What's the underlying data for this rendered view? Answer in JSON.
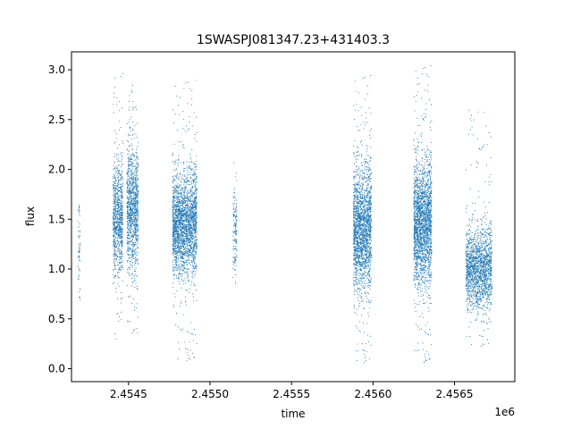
{
  "chart_data": {
    "type": "scatter",
    "title": "1SWASPJ081347.23+431403.3",
    "xlabel": "time",
    "ylabel": "flux",
    "x_offset_label": "1e6",
    "xlim": [
      2454150,
      2456870
    ],
    "ylim": [
      -0.13,
      3.18
    ],
    "x_ticks": [
      2454500,
      2455000,
      2455500,
      2456000,
      2456500
    ],
    "x_tick_labels": [
      "2.4545",
      "2.4550",
      "2.4555",
      "2.4560",
      "2.4565"
    ],
    "y_ticks": [
      0.0,
      0.5,
      1.0,
      1.5,
      2.0,
      2.5,
      3.0
    ],
    "y_tick_labels": [
      "0.0",
      "0.5",
      "1.0",
      "1.5",
      "2.0",
      "2.5",
      "3.0"
    ],
    "grid": false,
    "marker_color": "#1f77b4",
    "clusters": [
      {
        "x": [
          2454190,
          2454205
        ],
        "y_center": 1.25,
        "y_spread": 0.3,
        "y_min": 0.6,
        "y_max": 1.65,
        "count": 60
      },
      {
        "x": [
          2454405,
          2454465
        ],
        "y_center": 1.5,
        "y_spread": 0.28,
        "y_min": 0.25,
        "y_max": 3.0,
        "count": 900
      },
      {
        "x": [
          2454490,
          2454560
        ],
        "y_center": 1.6,
        "y_spread": 0.3,
        "y_min": 0.35,
        "y_max": 2.85,
        "count": 1100
      },
      {
        "x": [
          2454770,
          2454920
        ],
        "y_center": 1.45,
        "y_spread": 0.25,
        "y_min": 0.05,
        "y_max": 2.9,
        "count": 2400
      },
      {
        "x": [
          2455140,
          2455165
        ],
        "y_center": 1.4,
        "y_spread": 0.22,
        "y_min": 0.85,
        "y_max": 2.15,
        "count": 150
      },
      {
        "x": [
          2455880,
          2455990
        ],
        "y_center": 1.4,
        "y_spread": 0.3,
        "y_min": 0.03,
        "y_max": 2.95,
        "count": 2000
      },
      {
        "x": [
          2456250,
          2456360
        ],
        "y_center": 1.45,
        "y_spread": 0.3,
        "y_min": 0.03,
        "y_max": 3.05,
        "count": 2200
      },
      {
        "x": [
          2456570,
          2456730
        ],
        "y_center": 1.0,
        "y_spread": 0.2,
        "y_min": 0.2,
        "y_max": 2.65,
        "count": 1700
      }
    ]
  }
}
